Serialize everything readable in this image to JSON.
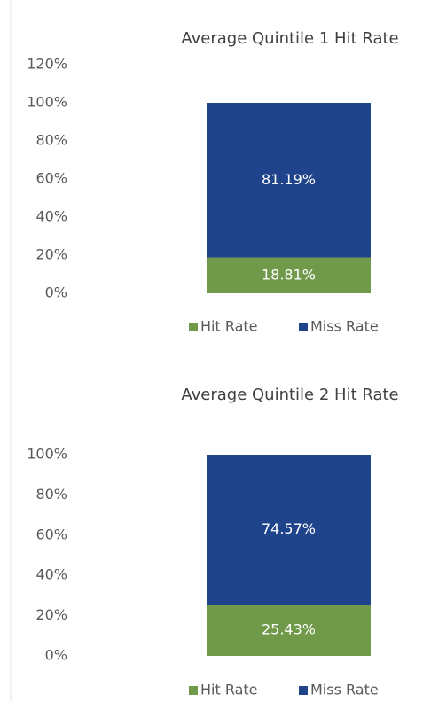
{
  "chart_data": [
    {
      "type": "bar",
      "stacked": true,
      "title": "Average Quintile 1 Hit Rate",
      "categories": [
        null
      ],
      "series": [
        {
          "name": "Hit Rate",
          "color": "#70994a",
          "values": [
            18.81
          ],
          "value_labels": [
            "18.81%"
          ]
        },
        {
          "name": "Miss Rate",
          "color": "#1f448c",
          "values": [
            81.19
          ],
          "value_labels": [
            "81.19%"
          ]
        }
      ],
      "ylim": [
        0,
        120
      ],
      "yticks": [
        {
          "value": 0,
          "label": "0%"
        },
        {
          "value": 20,
          "label": "20%"
        },
        {
          "value": 40,
          "label": "40%"
        },
        {
          "value": 60,
          "label": "60%"
        },
        {
          "value": 80,
          "label": "80%"
        },
        {
          "value": 100,
          "label": "100%"
        },
        {
          "value": 120,
          "label": "120%"
        }
      ],
      "legend": "bottom"
    },
    {
      "type": "bar",
      "stacked": true,
      "title": "Average Quintile 2 Hit Rate",
      "categories": [
        null
      ],
      "series": [
        {
          "name": "Hit Rate",
          "color": "#70994a",
          "values": [
            25.43
          ],
          "value_labels": [
            "25.43%"
          ]
        },
        {
          "name": "Miss Rate",
          "color": "#1f448c",
          "values": [
            74.57
          ],
          "value_labels": [
            "74.57%"
          ]
        }
      ],
      "ylim": [
        0,
        100
      ],
      "yticks": [
        {
          "value": 0,
          "label": "0%"
        },
        {
          "value": 20,
          "label": "20%"
        },
        {
          "value": 40,
          "label": "40%"
        },
        {
          "value": 60,
          "label": "60%"
        },
        {
          "value": 80,
          "label": "80%"
        },
        {
          "value": 100,
          "label": "100%"
        }
      ],
      "legend": "bottom"
    }
  ]
}
